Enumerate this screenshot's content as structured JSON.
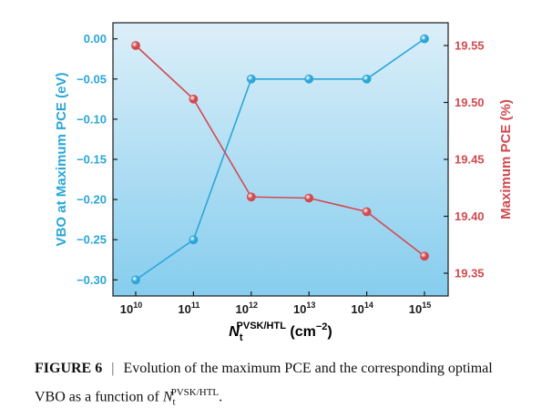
{
  "chart_data": {
    "type": "line",
    "x": [
      "10^10",
      "10^11",
      "10^12",
      "10^13",
      "10^14",
      "10^15"
    ],
    "x_ticks": [
      {
        "base": "10",
        "exp": "10"
      },
      {
        "base": "10",
        "exp": "11"
      },
      {
        "base": "10",
        "exp": "12"
      },
      {
        "base": "10",
        "exp": "13"
      },
      {
        "base": "10",
        "exp": "14"
      },
      {
        "base": "10",
        "exp": "15"
      }
    ],
    "xlabel": {
      "main": "N",
      "sub": "t",
      "sup": "PVSK/HTL",
      "unit": " (cm",
      "unit_sup": "−2",
      "unit_end": ")"
    },
    "series": [
      {
        "axis": "left",
        "values": [
          -0.3,
          -0.25,
          -0.05,
          -0.05,
          -0.05,
          0.0
        ],
        "color": "#2aa6d8"
      },
      {
        "axis": "right",
        "values": [
          19.55,
          19.503,
          19.417,
          19.416,
          19.404,
          19.365
        ],
        "color": "#d24a4f"
      }
    ],
    "ylabel_left": "VBO at Maximum PCE (eV)",
    "ylabel_right": "Maximum PCE (%)",
    "ylim_left": [
      -0.32,
      0.02
    ],
    "ylim_right": [
      19.33,
      19.57
    ],
    "yticks_left": [
      "0.00",
      "−0.05",
      "−0.10",
      "−0.15",
      "−0.20",
      "−0.25",
      "−0.30"
    ],
    "yticks_left_values": [
      0.0,
      -0.05,
      -0.1,
      -0.15,
      -0.2,
      -0.25,
      -0.3
    ],
    "yticks_right": [
      "19.55",
      "19.50",
      "19.45",
      "19.40",
      "19.35"
    ],
    "yticks_right_values": [
      19.55,
      19.5,
      19.45,
      19.4,
      19.35
    ],
    "left_axis_color": "#2aa6d8",
    "right_axis_color": "#d24a4f",
    "background_gradient": [
      "#dceff9",
      "#86cdee"
    ]
  },
  "caption": {
    "figure_label": "FIGURE 6",
    "separator": "|",
    "text_main": "Evolution of the maximum PCE and the corresponding optimal VBO as a function of ",
    "var": "N",
    "var_sub": "t",
    "var_sup": "PVSK/HTL",
    "text_end": "."
  }
}
